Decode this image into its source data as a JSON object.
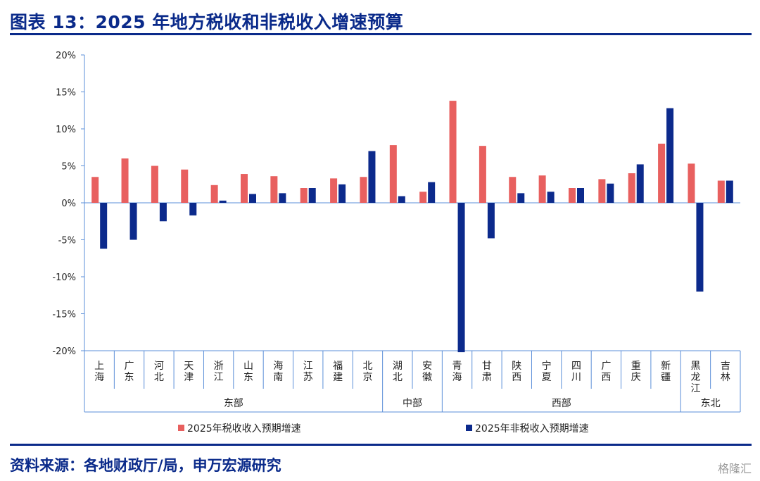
{
  "title": "图表 13：2025 年地方税收和非税收入增速预算",
  "source": "资料来源：各地财政厅/局，申万宏源研究",
  "watermark": "格隆汇",
  "colors": {
    "tax": "#e8605f",
    "nontax": "#0c2a8c",
    "axis": "#5b8fd8",
    "brand": "#0a2a8a"
  },
  "chart_data": {
    "type": "bar",
    "categories": [
      "上海",
      "广东",
      "河北",
      "天津",
      "浙江",
      "山东",
      "海南",
      "江苏",
      "福建",
      "北京",
      "湖北",
      "安徽",
      "青海",
      "甘肃",
      "陕西",
      "宁夏",
      "四川",
      "广西",
      "重庆",
      "新疆",
      "黑龙江",
      "吉林"
    ],
    "category_labels": [
      [
        "上",
        "海"
      ],
      [
        "广",
        "东"
      ],
      [
        "河",
        "北"
      ],
      [
        "天",
        "津"
      ],
      [
        "浙",
        "江"
      ],
      [
        "山",
        "东"
      ],
      [
        "海",
        "南"
      ],
      [
        "江",
        "苏"
      ],
      [
        "福",
        "建"
      ],
      [
        "北",
        "京"
      ],
      [
        "湖",
        "北"
      ],
      [
        "安",
        "徽"
      ],
      [
        "青",
        "海"
      ],
      [
        "甘",
        "肃"
      ],
      [
        "陕",
        "西"
      ],
      [
        "宁",
        "夏"
      ],
      [
        "四",
        "川"
      ],
      [
        "广",
        "西"
      ],
      [
        "重",
        "庆"
      ],
      [
        "新",
        "疆"
      ],
      [
        "黑",
        "龙",
        "江"
      ],
      [
        "吉",
        "林"
      ]
    ],
    "series": [
      {
        "name": "2025年税收收入预期增速",
        "values": [
          3.5,
          6.0,
          5.0,
          4.5,
          2.4,
          3.9,
          3.6,
          2.0,
          3.3,
          3.5,
          7.8,
          1.5,
          13.8,
          7.7,
          3.5,
          3.7,
          2.0,
          3.2,
          4.0,
          8.0,
          5.3,
          3.0
        ]
      },
      {
        "name": "2025年非税收入预期增速",
        "values": [
          -6.2,
          -5.0,
          -2.5,
          -1.7,
          0.3,
          1.2,
          1.3,
          2.0,
          2.5,
          7.0,
          0.9,
          2.8,
          -20.2,
          -4.8,
          1.3,
          1.5,
          2.0,
          2.6,
          5.2,
          12.8,
          -12.0,
          3.0
        ]
      }
    ],
    "regions": [
      {
        "name": "东部",
        "start": 0,
        "end": 9
      },
      {
        "name": "中部",
        "start": 10,
        "end": 11
      },
      {
        "name": "西部",
        "start": 12,
        "end": 19
      },
      {
        "name": "东北",
        "start": 20,
        "end": 21
      }
    ],
    "yticks": [
      "20%",
      "15%",
      "10%",
      "5%",
      "0%",
      "-5%",
      "-10%",
      "-15%",
      "-20%"
    ],
    "ylim": [
      -20,
      20
    ],
    "legend_position": "bottom",
    "grid": false
  }
}
